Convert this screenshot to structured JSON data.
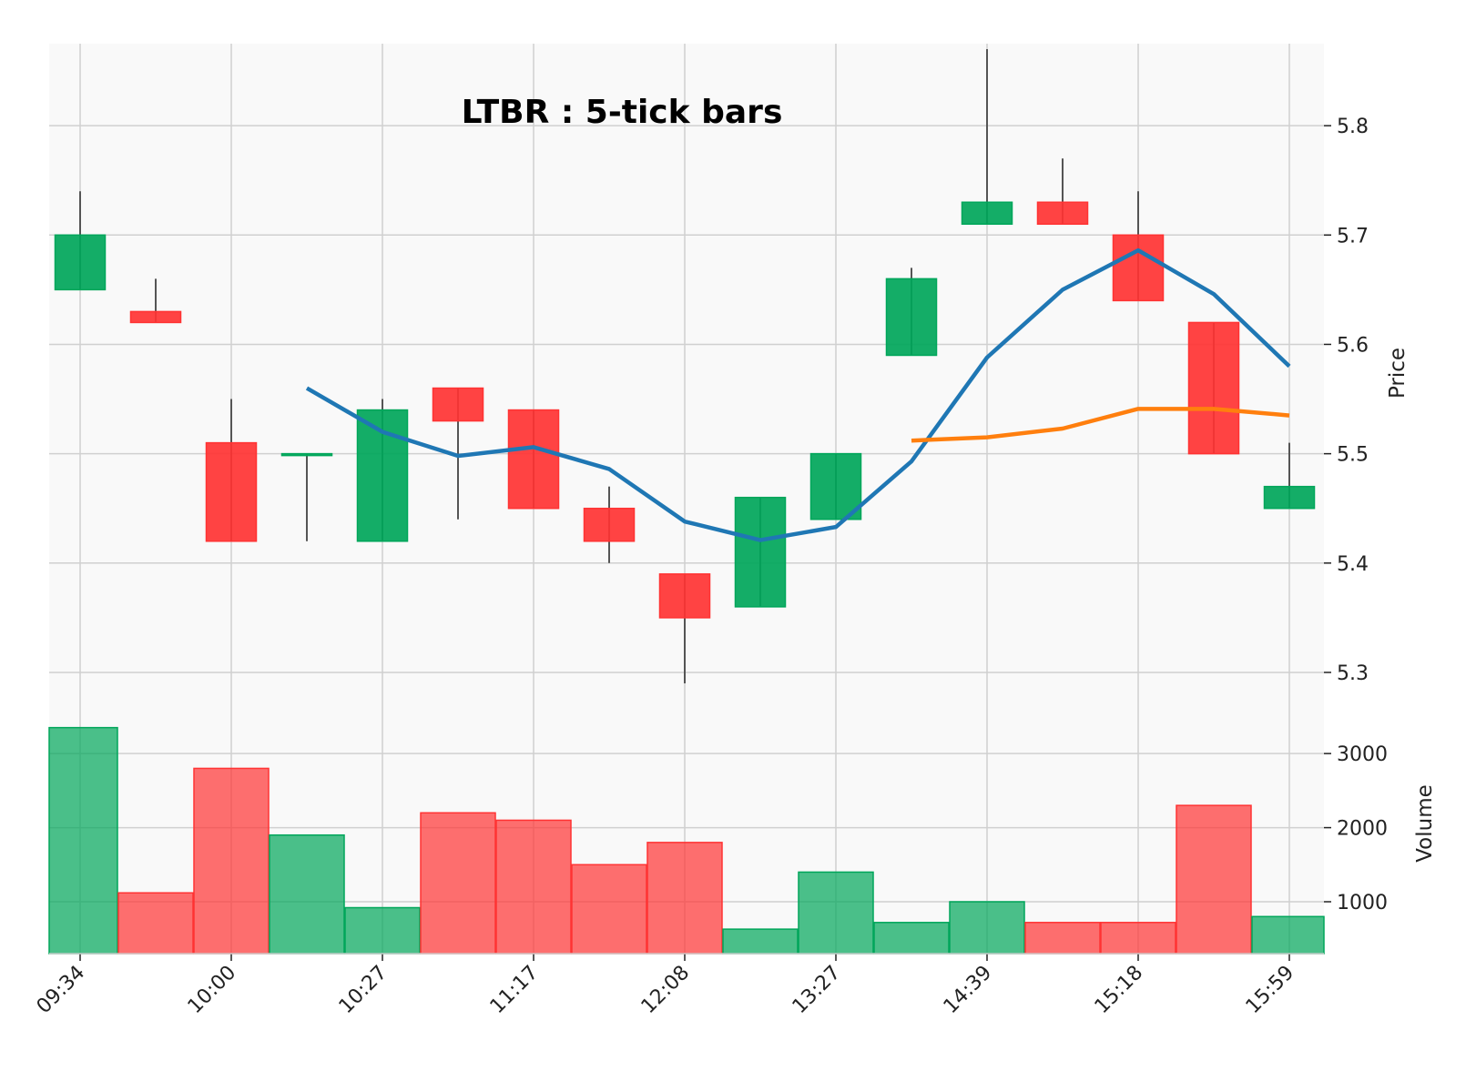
{
  "chart_data": {
    "type": "candlestick",
    "title": "LTBR : 5-tick bars",
    "ylabel_price": "Price",
    "ylabel_volume": "Volume",
    "price_ylim": [
      5.28,
      5.875
    ],
    "price_ticks": [
      5.3,
      5.4,
      5.5,
      5.6,
      5.7,
      5.8
    ],
    "volume_ylim": [
      300,
      3800
    ],
    "volume_ticks": [
      1000,
      2000,
      3000
    ],
    "x_tick_labels": [
      "09:34",
      "10:00",
      "10:27",
      "11:17",
      "12:08",
      "13:27",
      "14:39",
      "15:18",
      "15:59"
    ],
    "x_tick_indices": [
      0,
      2,
      4,
      6,
      8,
      10,
      12,
      14,
      16
    ],
    "grid": true,
    "colors": {
      "up": "#00a65a",
      "down": "#ff3333",
      "wick": "#555555",
      "ma_fast": "#1f77b4",
      "ma_slow": "#ff7f0e",
      "background": "#f9f9f9"
    },
    "candles": [
      {
        "open": 5.65,
        "high": 5.74,
        "low": 5.65,
        "close": 5.7,
        "volume": 3350
      },
      {
        "open": 5.63,
        "high": 5.66,
        "low": 5.62,
        "close": 5.62,
        "volume": 1120
      },
      {
        "open": 5.51,
        "high": 5.55,
        "low": 5.42,
        "close": 5.42,
        "volume": 2800
      },
      {
        "open": 5.5,
        "high": 5.5,
        "low": 5.42,
        "close": 5.5,
        "volume": 1900
      },
      {
        "open": 5.42,
        "high": 5.55,
        "low": 5.42,
        "close": 5.54,
        "volume": 920
      },
      {
        "open": 5.56,
        "high": 5.56,
        "low": 5.44,
        "close": 5.53,
        "volume": 2200
      },
      {
        "open": 5.54,
        "high": 5.54,
        "low": 5.45,
        "close": 5.45,
        "volume": 2100
      },
      {
        "open": 5.45,
        "high": 5.47,
        "low": 5.4,
        "close": 5.42,
        "volume": 1500
      },
      {
        "open": 5.39,
        "high": 5.39,
        "low": 5.29,
        "close": 5.35,
        "volume": 1800
      },
      {
        "open": 5.36,
        "high": 5.46,
        "low": 5.36,
        "close": 5.46,
        "volume": 630
      },
      {
        "open": 5.44,
        "high": 5.5,
        "low": 5.44,
        "close": 5.5,
        "volume": 1400
      },
      {
        "open": 5.59,
        "high": 5.67,
        "low": 5.59,
        "close": 5.66,
        "volume": 720
      },
      {
        "open": 5.71,
        "high": 5.87,
        "low": 5.71,
        "close": 5.73,
        "volume": 1000
      },
      {
        "open": 5.73,
        "high": 5.77,
        "low": 5.71,
        "close": 5.71,
        "volume": 720
      },
      {
        "open": 5.7,
        "high": 5.74,
        "low": 5.64,
        "close": 5.64,
        "volume": 720
      },
      {
        "open": 5.62,
        "high": 5.62,
        "low": 5.5,
        "close": 5.5,
        "volume": 2300
      },
      {
        "open": 5.45,
        "high": 5.51,
        "low": 5.45,
        "close": 5.47,
        "volume": 800
      }
    ],
    "ma_fast": {
      "start_index": 3,
      "values": [
        5.56,
        5.52,
        5.498,
        5.506,
        5.486,
        5.438,
        5.421,
        5.433,
        5.493,
        5.588,
        5.65,
        5.686,
        5.646,
        5.58
      ]
    },
    "ma_slow": {
      "start_index": 11,
      "values": [
        5.512,
        5.515,
        5.523,
        5.541,
        5.541,
        5.535
      ]
    }
  }
}
